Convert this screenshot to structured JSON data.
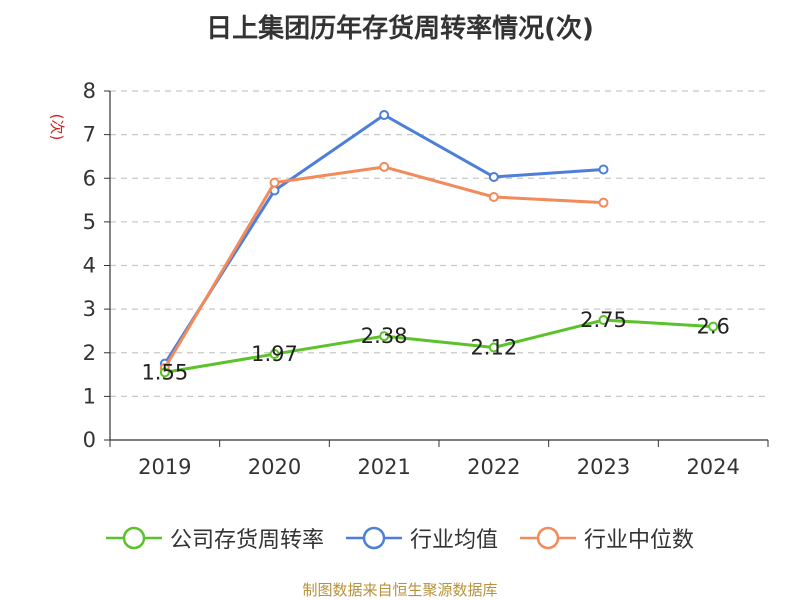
{
  "chart_data": {
    "type": "line",
    "title": "日上集团历年存货周转率情况(次)",
    "ylabel": "(次)",
    "xlabel": "",
    "categories": [
      "2019",
      "2020",
      "2021",
      "2022",
      "2023",
      "2024"
    ],
    "ylim": [
      0,
      8
    ],
    "yticks": [
      0,
      1,
      2,
      3,
      4,
      5,
      6,
      7,
      8
    ],
    "grid": true,
    "legend_position": "bottom",
    "series": [
      {
        "name": "公司存货周转率",
        "color": "#5bc22a",
        "values": [
          1.55,
          1.97,
          2.38,
          2.12,
          2.75,
          2.6
        ],
        "labels": [
          "1.55",
          "1.97",
          "2.38",
          "2.12",
          "2.75",
          "2.6"
        ]
      },
      {
        "name": "行业均值",
        "color": "#4d7fd9",
        "values": [
          1.75,
          5.72,
          7.45,
          6.03,
          6.2,
          null
        ]
      },
      {
        "name": "行业中位数",
        "color": "#f28a5a",
        "values": [
          1.65,
          5.9,
          6.26,
          5.57,
          5.44,
          null
        ]
      }
    ]
  },
  "source": "制图数据来自恒生聚源数据库"
}
